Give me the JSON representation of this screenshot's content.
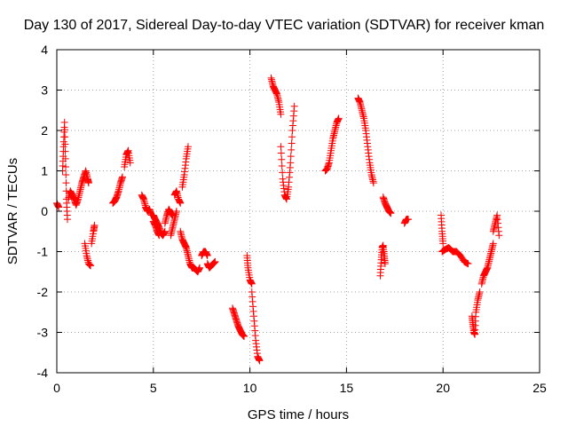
{
  "chart_data": {
    "type": "scatter",
    "title": "Day 130 of 2017, Sidereal Day-to-day VTEC variation (SDTVAR) for receiver kman",
    "xlabel": "GPS time / hours",
    "ylabel": "SDTVAR / TECUs",
    "xlim": [
      0,
      25
    ],
    "ylim": [
      -4,
      4
    ],
    "xticks": [
      "0",
      "5",
      "10",
      "15",
      "20",
      "25"
    ],
    "yticks": [
      "-4",
      "-3",
      "-2",
      "-1",
      "0",
      "1",
      "2",
      "3",
      "4"
    ],
    "grid": true,
    "marker": "plus",
    "color": "#ff0000",
    "segments": [
      {
        "x": [
          0.0,
          0.1
        ],
        "y": [
          0.2,
          0.1
        ]
      },
      {
        "x": [
          0.3,
          0.35,
          0.4,
          0.45,
          0.5,
          0.55
        ],
        "y": [
          1.0,
          1.6,
          2.2,
          1.3,
          0.3,
          -0.2
        ]
      },
      {
        "x": [
          0.6,
          0.7,
          0.8,
          0.9,
          1.0,
          1.1,
          1.2,
          1.3,
          1.4,
          1.5,
          1.6,
          1.65
        ],
        "y": [
          0.3,
          0.5,
          0.4,
          0.3,
          0.15,
          0.3,
          0.5,
          0.7,
          0.85,
          1.0,
          0.8,
          0.7
        ]
      },
      {
        "x": [
          1.45,
          1.55,
          1.65,
          1.75
        ],
        "y": [
          -0.8,
          -1.1,
          -1.3,
          -1.35
        ]
      },
      {
        "x": [
          1.8,
          1.9,
          1.95
        ],
        "y": [
          -0.8,
          -0.5,
          -0.35
        ]
      },
      {
        "x": [
          2.9,
          3.0,
          3.1,
          3.2,
          3.3,
          3.4
        ],
        "y": [
          0.2,
          0.25,
          0.35,
          0.5,
          0.7,
          0.85
        ]
      },
      {
        "x": [
          3.5,
          3.6,
          3.7,
          3.8
        ],
        "y": [
          1.1,
          1.4,
          1.5,
          1.2
        ]
      },
      {
        "x": [
          4.4,
          4.5,
          4.6,
          4.7,
          4.8,
          4.9,
          5.0,
          5.1,
          5.2,
          5.3,
          5.4,
          5.5,
          5.6
        ],
        "y": [
          0.4,
          0.3,
          0.1,
          0.0,
          0.05,
          -0.1,
          -0.1,
          -0.2,
          -0.3,
          -0.4,
          -0.55,
          -0.6,
          -0.5
        ]
      },
      {
        "x": [
          5.0,
          5.1,
          5.2,
          5.3
        ],
        "y": [
          -0.25,
          -0.35,
          -0.5,
          -0.6
        ]
      },
      {
        "x": [
          5.6,
          5.7,
          5.8,
          5.9,
          6.0
        ],
        "y": [
          -0.3,
          -0.1,
          0.05,
          -0.05,
          -0.1
        ]
      },
      {
        "x": [
          5.9,
          6.0,
          6.1,
          6.2
        ],
        "y": [
          -0.6,
          -0.4,
          -0.2,
          0.0
        ]
      },
      {
        "x": [
          6.1,
          6.2,
          6.3,
          6.4
        ],
        "y": [
          0.4,
          0.5,
          0.3,
          0.2
        ]
      },
      {
        "x": [
          6.5,
          6.6,
          6.7,
          6.8
        ],
        "y": [
          0.6,
          0.9,
          1.3,
          1.6
        ]
      },
      {
        "x": [
          6.4,
          6.5,
          6.6,
          6.7,
          6.8,
          6.9,
          7.0,
          7.1,
          7.2,
          7.3,
          7.4
        ],
        "y": [
          -0.5,
          -0.7,
          -0.8,
          -0.9,
          -1.1,
          -1.3,
          -1.4,
          -1.4,
          -1.45,
          -1.5,
          -1.4
        ]
      },
      {
        "x": [
          7.5,
          7.6,
          7.7,
          7.8
        ],
        "y": [
          -1.1,
          -1.0,
          -1.0,
          -1.1
        ]
      },
      {
        "x": [
          7.8,
          7.9,
          8.0,
          8.1,
          8.2
        ],
        "y": [
          -1.3,
          -1.4,
          -1.35,
          -1.3,
          -1.25
        ]
      },
      {
        "x": [
          9.1,
          9.2,
          9.3,
          9.4,
          9.5,
          9.6,
          9.7
        ],
        "y": [
          -2.4,
          -2.55,
          -2.7,
          -2.85,
          -2.95,
          -3.05,
          -3.1
        ]
      },
      {
        "x": [
          9.85,
          9.9,
          10.0,
          10.1
        ],
        "y": [
          -1.1,
          -1.4,
          -1.7,
          -1.8
        ]
      },
      {
        "x": [
          10.1,
          10.2,
          10.3,
          10.4,
          10.5
        ],
        "y": [
          -2.0,
          -2.6,
          -3.2,
          -3.6,
          -3.7
        ]
      },
      {
        "x": [
          11.1,
          11.2,
          11.3,
          11.4,
          11.5,
          11.6
        ],
        "y": [
          3.3,
          3.1,
          3.0,
          2.9,
          2.7,
          2.4
        ]
      },
      {
        "x": [
          11.6,
          11.7,
          11.8,
          11.9,
          12.0,
          12.1,
          12.2,
          12.3
        ],
        "y": [
          1.6,
          0.8,
          0.4,
          0.3,
          0.6,
          1.2,
          2.0,
          2.6
        ]
      },
      {
        "x": [
          13.9,
          14.0,
          14.1,
          14.2,
          14.3,
          14.4,
          14.5,
          14.6
        ],
        "y": [
          1.0,
          1.05,
          1.2,
          1.5,
          1.8,
          2.0,
          2.2,
          2.3
        ]
      },
      {
        "x": [
          15.6,
          15.7,
          15.8,
          15.9,
          16.0,
          16.1,
          16.2,
          16.3,
          16.4
        ],
        "y": [
          2.8,
          2.7,
          2.5,
          2.3,
          2.0,
          1.6,
          1.2,
          0.9,
          0.7
        ]
      },
      {
        "x": [
          16.75,
          16.8,
          16.85,
          16.9,
          16.95,
          17.0
        ],
        "y": [
          -1.6,
          -1.2,
          -0.9,
          -0.85,
          -1.1,
          -1.3
        ]
      },
      {
        "x": [
          16.9,
          17.0,
          17.1,
          17.2,
          17.3
        ],
        "y": [
          0.35,
          0.2,
          0.1,
          0.0,
          -0.05
        ]
      },
      {
        "x": [
          18.0,
          18.1,
          18.2
        ],
        "y": [
          -0.3,
          -0.2,
          -0.2
        ]
      },
      {
        "x": [
          19.9,
          19.95,
          20.0
        ],
        "y": [
          -0.1,
          -0.5,
          -0.8
        ]
      },
      {
        "x": [
          19.95,
          20.1,
          20.3,
          20.5,
          20.7,
          20.9,
          21.1,
          21.3
        ],
        "y": [
          -1.0,
          -0.95,
          -0.9,
          -1.0,
          -1.0,
          -1.1,
          -1.25,
          -1.3
        ]
      },
      {
        "x": [
          21.5,
          21.55,
          21.6,
          21.65,
          21.7,
          21.8,
          21.9
        ],
        "y": [
          -2.6,
          -2.8,
          -3.0,
          -3.05,
          -2.5,
          -2.2,
          -2.0
        ]
      },
      {
        "x": [
          22.0,
          22.1,
          22.2,
          22.3,
          22.4,
          22.5,
          22.6
        ],
        "y": [
          -1.8,
          -1.6,
          -1.5,
          -1.4,
          -1.2,
          -1.0,
          -0.8
        ]
      },
      {
        "x": [
          22.6,
          22.7,
          22.8,
          22.9
        ],
        "y": [
          -0.5,
          -0.3,
          -0.1,
          -0.6
        ]
      }
    ]
  }
}
